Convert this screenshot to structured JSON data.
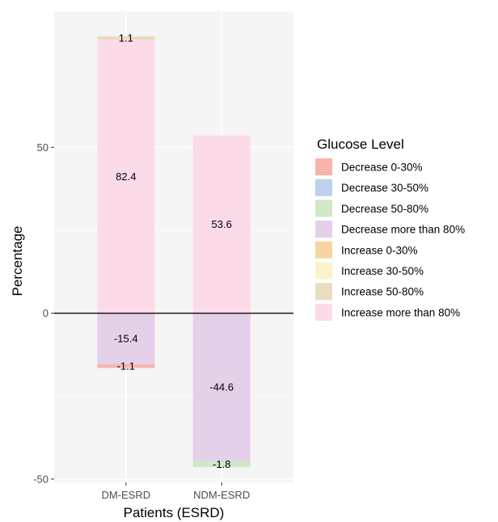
{
  "chart_data": {
    "type": "bar",
    "stacked": true,
    "diverging": true,
    "categories": [
      "DM-ESRD",
      "NDM-ESRD"
    ],
    "series": [
      {
        "name": "Decrease 0-30%",
        "color": "#f8b4ab",
        "values": [
          -1.1,
          0
        ]
      },
      {
        "name": "Decrease 30-50%",
        "color": "#bcd2ea",
        "values": [
          0,
          0
        ]
      },
      {
        "name": "Decrease 50-80%",
        "color": "#cfe8c5",
        "values": [
          0,
          -1.8
        ]
      },
      {
        "name": "Decrease more than 80%",
        "color": "#e4d0e8",
        "values": [
          -15.4,
          -44.6
        ]
      },
      {
        "name": "Increase 0-30%",
        "color": "#f8d4a0",
        "values": [
          0,
          0
        ]
      },
      {
        "name": "Increase 30-50%",
        "color": "#fcf3c8",
        "values": [
          0,
          0
        ]
      },
      {
        "name": "Increase 50-80%",
        "color": "#eadcc0",
        "values": [
          1.1,
          0
        ]
      },
      {
        "name": "Increase more than 80%",
        "color": "#fbdbe9",
        "values": [
          82.4,
          53.6
        ]
      }
    ],
    "stack_order": {
      "positive": [
        "Increase more than 80%",
        "Increase 50-80%",
        "Increase 30-50%",
        "Increase 0-30%"
      ],
      "negative": [
        "Decrease more than 80%",
        "Decrease 50-80%",
        "Decrease 30-50%",
        "Decrease 0-30%"
      ]
    },
    "data_labels": [
      {
        "category": "DM-ESRD",
        "series": "Increase 50-80%",
        "text": "1.1"
      },
      {
        "category": "DM-ESRD",
        "series": "Increase more than 80%",
        "text": "82.4"
      },
      {
        "category": "DM-ESRD",
        "series": "Decrease more than 80%",
        "text": "-15.4"
      },
      {
        "category": "DM-ESRD",
        "series": "Decrease 0-30%",
        "text": "-1.1"
      },
      {
        "category": "NDM-ESRD",
        "series": "Increase more than 80%",
        "text": "53.6"
      },
      {
        "category": "NDM-ESRD",
        "series": "Decrease more than 80%",
        "text": "-44.6"
      },
      {
        "category": "NDM-ESRD",
        "series": "Decrease 50-80%",
        "text": "-1.8"
      }
    ],
    "xlabel": "Patients (ESRD)",
    "ylabel": "Percentage",
    "ylim": [
      -51,
      91
    ],
    "yticks": [
      -50,
      0,
      50
    ],
    "ytick_labels": [
      "-50",
      "0",
      "50"
    ],
    "zero_line": true,
    "grid": true,
    "plot_background": "#f5f5f5",
    "legend": {
      "title": "Glucose Level",
      "position": "right"
    }
  }
}
